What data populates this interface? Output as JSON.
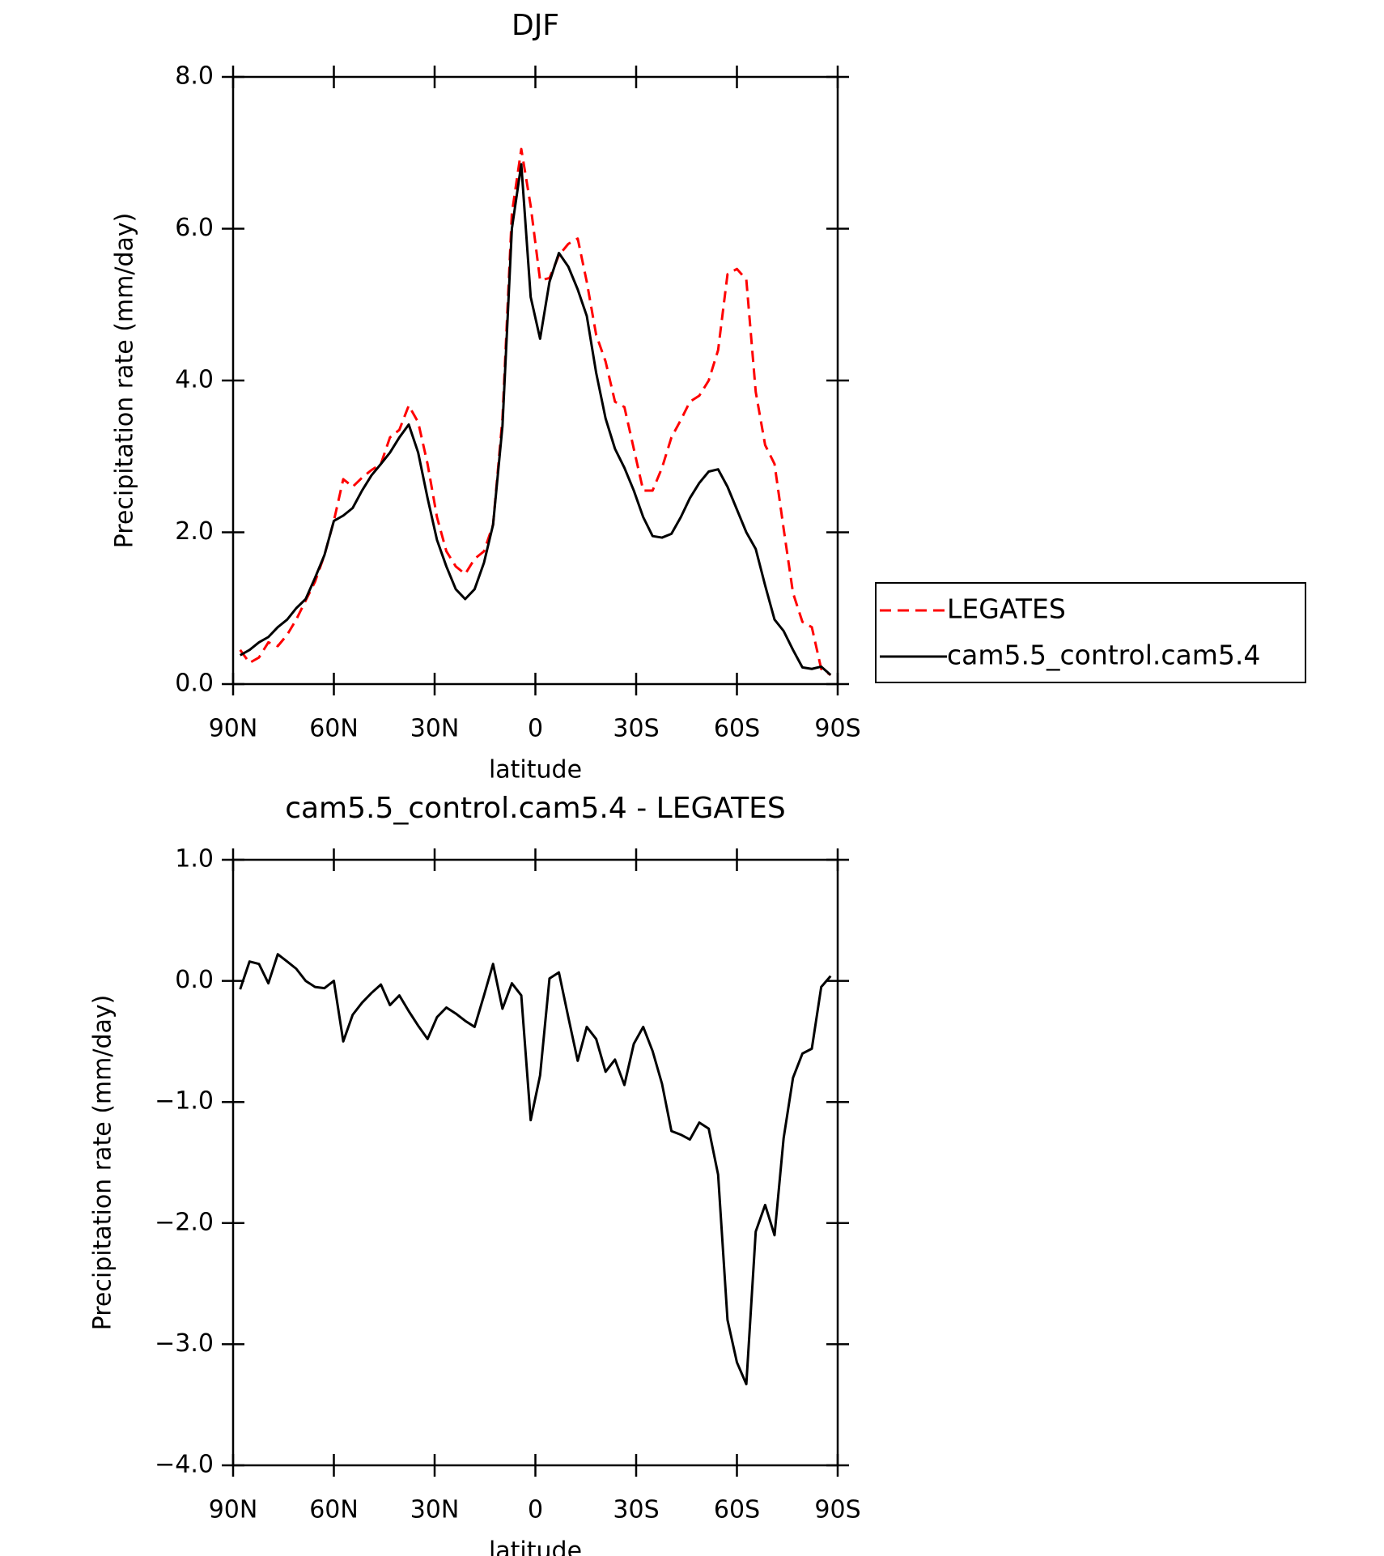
{
  "chart_data": [
    {
      "type": "line",
      "title": "DJF",
      "x_label": "latitude",
      "y_label": "Precipitation rate (mm/day)",
      "x": [
        87.9,
        85.1,
        82.3,
        79.5,
        76.7,
        73.9,
        71.2,
        68.4,
        65.6,
        62.8,
        60.0,
        57.2,
        54.4,
        51.6,
        48.8,
        46.0,
        43.3,
        40.5,
        37.7,
        34.9,
        32.1,
        29.3,
        26.5,
        23.7,
        20.9,
        18.1,
        15.3,
        12.6,
        9.8,
        7.0,
        4.2,
        1.4,
        -1.4,
        -4.2,
        -7.0,
        -9.8,
        -12.6,
        -15.3,
        -18.1,
        -20.9,
        -23.7,
        -26.5,
        -29.3,
        -32.1,
        -34.9,
        -37.7,
        -40.5,
        -43.3,
        -46.0,
        -48.8,
        -51.6,
        -54.4,
        -57.2,
        -60.0,
        -62.8,
        -65.6,
        -68.4,
        -71.2,
        -73.9,
        -76.7,
        -79.5,
        -82.3,
        -85.1,
        -87.9
      ],
      "series": [
        {
          "name": "LEGATES",
          "color": "#ff0000",
          "line_style": "dashed",
          "values": [
            0.45,
            0.28,
            0.35,
            0.55,
            0.5,
            0.65,
            0.85,
            1.1,
            1.35,
            1.7,
            2.15,
            2.7,
            2.6,
            2.72,
            2.82,
            2.9,
            3.25,
            3.35,
            3.67,
            3.45,
            2.9,
            2.2,
            1.75,
            1.55,
            1.45,
            1.65,
            1.75,
            2.1,
            3.5,
            6.2,
            7.05,
            6.3,
            5.32,
            5.35,
            5.65,
            5.8,
            5.87,
            5.3,
            4.6,
            4.25,
            3.72,
            3.65,
            3.1,
            2.55,
            2.55,
            2.85,
            3.25,
            3.48,
            3.72,
            3.8,
            4.0,
            4.4,
            5.4,
            5.47,
            5.33,
            3.85,
            3.15,
            2.9,
            2.05,
            1.2,
            0.82,
            0.75,
            0.2,
            0.12
          ]
        },
        {
          "name": "cam5.5_control.cam5.4",
          "color": "#000000",
          "line_style": "solid",
          "values": [
            0.38,
            0.45,
            0.55,
            0.62,
            0.75,
            0.85,
            1.0,
            1.12,
            1.4,
            1.7,
            2.15,
            2.22,
            2.32,
            2.55,
            2.75,
            2.9,
            3.05,
            3.25,
            3.42,
            3.05,
            2.45,
            1.9,
            1.55,
            1.25,
            1.12,
            1.25,
            1.6,
            2.1,
            3.4,
            6.0,
            6.85,
            5.1,
            4.55,
            5.3,
            5.68,
            5.5,
            5.2,
            4.85,
            4.1,
            3.5,
            3.1,
            2.85,
            2.55,
            2.2,
            1.95,
            1.93,
            1.98,
            2.2,
            2.45,
            2.65,
            2.8,
            2.83,
            2.6,
            2.3,
            2.0,
            1.78,
            1.3,
            0.85,
            0.7,
            0.45,
            0.22,
            0.2,
            0.23,
            0.12
          ]
        }
      ],
      "xlim": [
        90,
        -90
      ],
      "xticks": [
        {
          "value": 90,
          "label": "90N"
        },
        {
          "value": 60,
          "label": "60N"
        },
        {
          "value": 30,
          "label": "30N"
        },
        0,
        {
          "value": -30,
          "label": "30S"
        },
        {
          "value": -60,
          "label": "60S"
        },
        {
          "value": -90,
          "label": "90S"
        }
      ],
      "ylim": [
        0,
        8
      ],
      "yticks": [
        {
          "value": 0,
          "label": "0.0"
        },
        {
          "value": 2,
          "label": "2.0"
        },
        {
          "value": 4,
          "label": "4.0"
        },
        {
          "value": 6,
          "label": "6.0"
        },
        {
          "value": 8,
          "label": "8.0"
        }
      ],
      "legend": "right"
    },
    {
      "type": "line",
      "title": "cam5.5_control.cam5.4 - LEGATES",
      "x_label": "latitude",
      "y_label": "Precipitation rate (mm/day)",
      "x": [
        87.9,
        85.1,
        82.3,
        79.5,
        76.7,
        73.9,
        71.2,
        68.4,
        65.6,
        62.8,
        60.0,
        57.2,
        54.4,
        51.6,
        48.8,
        46.0,
        43.3,
        40.5,
        37.7,
        34.9,
        32.1,
        29.3,
        26.5,
        23.7,
        20.9,
        18.1,
        15.3,
        12.6,
        9.8,
        7.0,
        4.2,
        1.4,
        -1.4,
        -4.2,
        -7.0,
        -9.8,
        -12.6,
        -15.3,
        -18.1,
        -20.9,
        -23.7,
        -26.5,
        -29.3,
        -32.1,
        -34.9,
        -37.7,
        -40.5,
        -43.3,
        -46.0,
        -48.8,
        -51.6,
        -54.4,
        -57.2,
        -60.0,
        -62.8,
        -65.6,
        -68.4,
        -71.2,
        -73.9,
        -76.7,
        -79.5,
        -82.3,
        -85.1,
        -87.9
      ],
      "series": [
        {
          "color": "#000000",
          "line_style": "solid",
          "values": [
            -0.07,
            0.16,
            0.14,
            -0.02,
            0.22,
            0.16,
            0.1,
            0.0,
            -0.05,
            -0.06,
            0.0,
            -0.5,
            -0.28,
            -0.18,
            -0.1,
            -0.03,
            -0.2,
            -0.12,
            -0.25,
            -0.37,
            -0.48,
            -0.3,
            -0.22,
            -0.27,
            -0.33,
            -0.38,
            -0.12,
            0.14,
            -0.23,
            -0.02,
            -0.12,
            -1.15,
            -0.78,
            0.02,
            0.07,
            -0.3,
            -0.66,
            -0.38,
            -0.48,
            -0.75,
            -0.65,
            -0.86,
            -0.52,
            -0.38,
            -0.58,
            -0.85,
            -1.24,
            -1.27,
            -1.31,
            -1.17,
            -1.22,
            -1.6,
            -2.8,
            -3.15,
            -3.33,
            -2.07,
            -1.85,
            -2.1,
            -1.3,
            -0.8,
            -0.6,
            -0.56,
            -0.05,
            0.04
          ]
        }
      ],
      "xlim": [
        90,
        -90
      ],
      "xticks": [
        {
          "value": 90,
          "label": "90N"
        },
        {
          "value": 60,
          "label": "60N"
        },
        {
          "value": 30,
          "label": "30N"
        },
        0,
        {
          "value": -30,
          "label": "30S"
        },
        {
          "value": -60,
          "label": "60S"
        },
        {
          "value": -90,
          "label": "90S"
        }
      ],
      "ylim": [
        -4,
        1
      ],
      "yticks": [
        {
          "value": -4,
          "label": "−4.0"
        },
        {
          "value": -3,
          "label": "−3.0"
        },
        {
          "value": -2,
          "label": "−2.0"
        },
        {
          "value": -1,
          "label": "−1.0"
        },
        {
          "value": 0,
          "label": "0.0"
        },
        {
          "value": 1,
          "label": "1.0"
        }
      ]
    }
  ]
}
